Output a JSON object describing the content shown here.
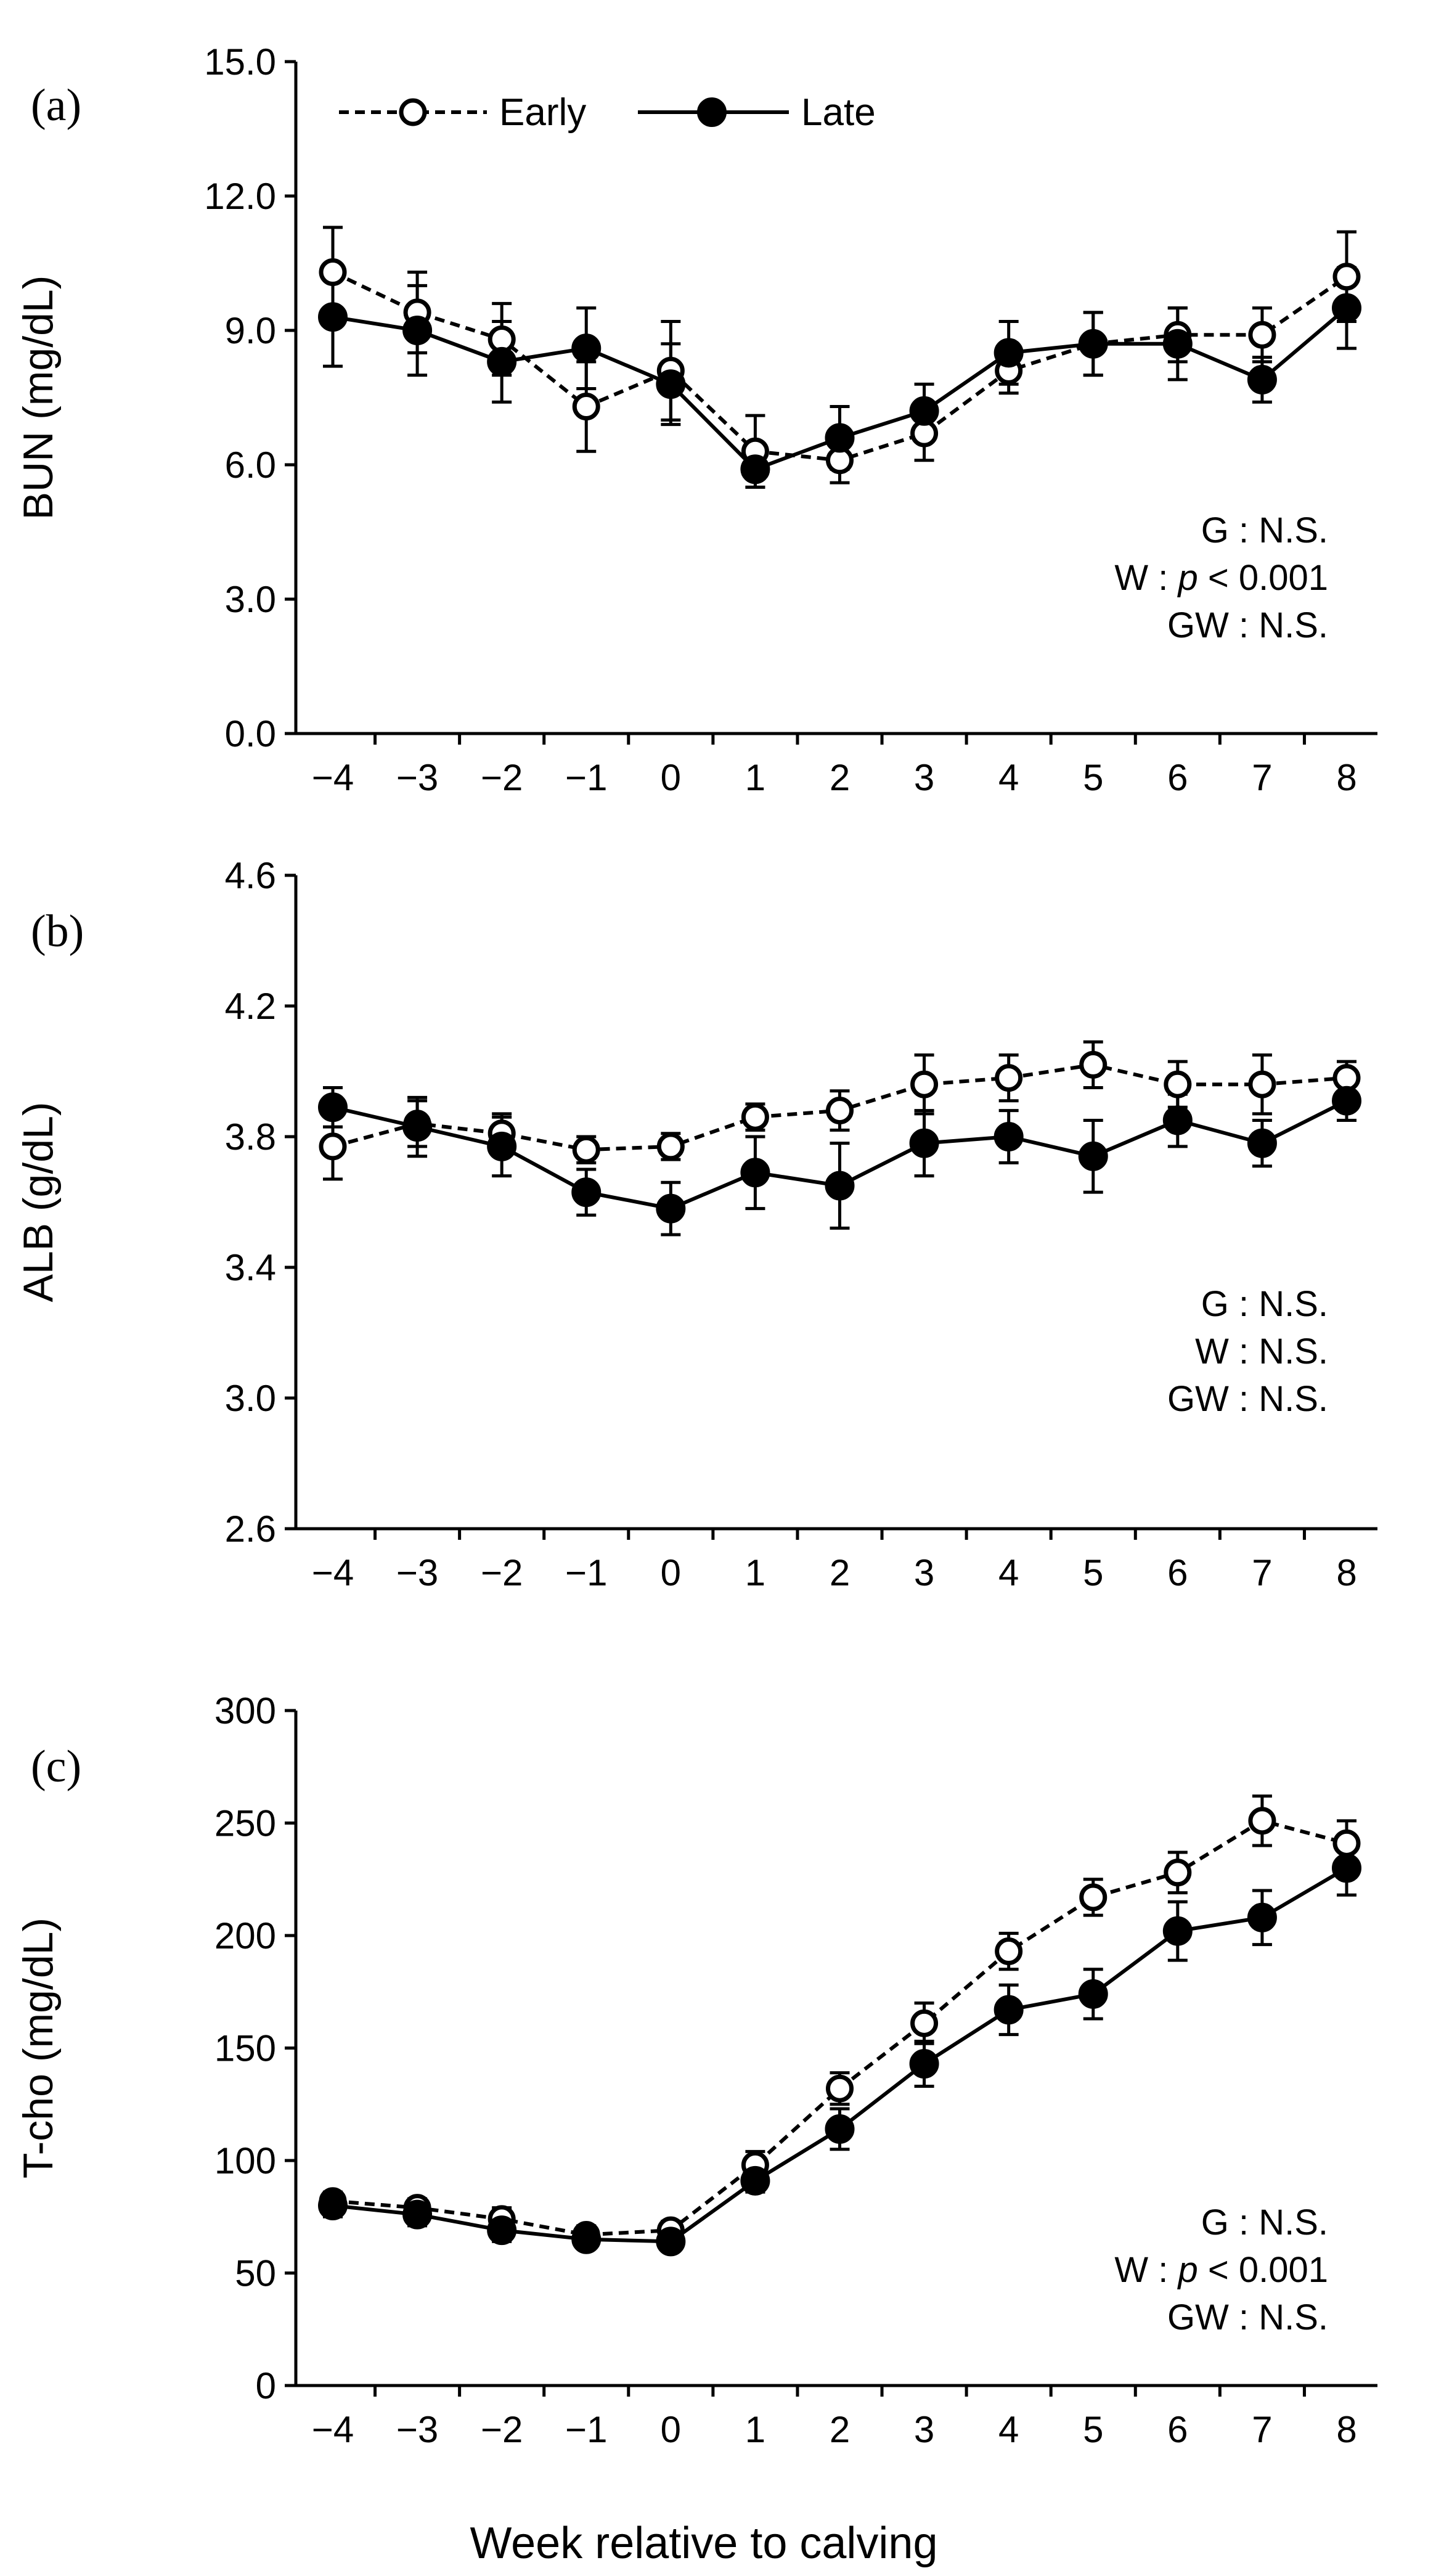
{
  "x_axis_label": "Week relative to calving",
  "legend": {
    "early": "Early",
    "late": "Late"
  },
  "chart_data": [
    {
      "panel_label": "(a)",
      "type": "line",
      "ylabel": "BUN (mg/dL)",
      "ylim": [
        0,
        15
      ],
      "yticks": [
        "0.0",
        "3.0",
        "6.0",
        "9.0",
        "12.0",
        "15.0"
      ],
      "categories": [
        "−4",
        "−3",
        "−2",
        "−1",
        "0",
        "1",
        "2",
        "3",
        "4",
        "5",
        "6",
        "7",
        "8"
      ],
      "x": [
        -4,
        -3,
        -2,
        -1,
        0,
        1,
        2,
        3,
        4,
        5,
        6,
        7,
        8
      ],
      "series": [
        {
          "name": "Early",
          "values": [
            10.3,
            9.4,
            8.8,
            7.3,
            8.1,
            6.3,
            6.1,
            6.7,
            8.1,
            8.7,
            8.9,
            8.9,
            10.2
          ],
          "errors": [
            1.0,
            0.9,
            0.8,
            1.0,
            1.1,
            0.8,
            0.5,
            0.6,
            0.5,
            0.7,
            0.6,
            0.6,
            1.0
          ]
        },
        {
          "name": "Late",
          "values": [
            9.3,
            9.0,
            8.3,
            8.6,
            7.8,
            5.9,
            6.6,
            7.2,
            8.5,
            8.7,
            8.7,
            7.9,
            9.5
          ],
          "errors": [
            1.1,
            1.0,
            0.9,
            0.9,
            0.9,
            0.4,
            0.7,
            0.6,
            0.7,
            0.7,
            0.8,
            0.5,
            0.9
          ]
        }
      ],
      "stats": [
        {
          "label": "G",
          "value": "N.S."
        },
        {
          "label": "W",
          "p": "p",
          "value": " < 0.001"
        },
        {
          "label": "GW",
          "value": "N.S."
        }
      ],
      "show_legend": true
    },
    {
      "panel_label": "(b)",
      "type": "line",
      "ylabel": "ALB (g/dL)",
      "ylim": [
        2.6,
        4.6
      ],
      "yticks": [
        "2.6",
        "3.0",
        "3.4",
        "3.8",
        "4.2",
        "4.6"
      ],
      "categories": [
        "−4",
        "−3",
        "−2",
        "−1",
        "0",
        "1",
        "2",
        "3",
        "4",
        "5",
        "6",
        "7",
        "8"
      ],
      "x": [
        -4,
        -3,
        -2,
        -1,
        0,
        1,
        2,
        3,
        4,
        5,
        6,
        7,
        8
      ],
      "series": [
        {
          "name": "Early",
          "values": [
            3.77,
            3.84,
            3.81,
            3.76,
            3.77,
            3.86,
            3.88,
            3.96,
            3.98,
            4.02,
            3.96,
            3.96,
            3.98
          ],
          "errors": [
            0.1,
            0.07,
            0.06,
            0.04,
            0.04,
            0.04,
            0.06,
            0.09,
            0.07,
            0.07,
            0.07,
            0.09,
            0.05
          ]
        },
        {
          "name": "Late",
          "values": [
            3.89,
            3.83,
            3.77,
            3.63,
            3.58,
            3.69,
            3.65,
            3.78,
            3.8,
            3.74,
            3.85,
            3.78,
            3.91
          ],
          "errors": [
            0.06,
            0.09,
            0.09,
            0.07,
            0.08,
            0.11,
            0.13,
            0.1,
            0.08,
            0.11,
            0.08,
            0.07,
            0.06
          ]
        }
      ],
      "stats": [
        {
          "label": "G",
          "value": "N.S."
        },
        {
          "label": "W",
          "value": "N.S."
        },
        {
          "label": "GW",
          "value": "N.S."
        }
      ],
      "show_legend": false
    },
    {
      "panel_label": "(c)",
      "type": "line",
      "ylabel": "T-cho (mg/dL)",
      "ylim": [
        0,
        300
      ],
      "yticks": [
        "0",
        "50",
        "100",
        "150",
        "200",
        "250",
        "300"
      ],
      "categories": [
        "−4",
        "−3",
        "−2",
        "−1",
        "0",
        "1",
        "2",
        "3",
        "4",
        "5",
        "6",
        "7",
        "8"
      ],
      "x": [
        -4,
        -3,
        -2,
        -1,
        0,
        1,
        2,
        3,
        4,
        5,
        6,
        7,
        8
      ],
      "series": [
        {
          "name": "Early",
          "values": [
            82,
            79,
            74,
            67,
            69,
            98,
            132,
            161,
            193,
            217,
            228,
            251,
            241
          ],
          "errors": [
            4,
            4,
            5,
            4,
            4,
            6,
            7,
            9,
            8,
            8,
            9,
            11,
            10
          ]
        },
        {
          "name": "Late",
          "values": [
            80,
            76,
            69,
            65,
            64,
            91,
            114,
            143,
            167,
            174,
            202,
            208,
            230
          ],
          "errors": [
            5,
            5,
            5,
            4,
            4,
            5,
            9,
            10,
            11,
            11,
            13,
            12,
            12
          ]
        }
      ],
      "stats": [
        {
          "label": "G",
          "value": "N.S."
        },
        {
          "label": "W",
          "p": "p",
          "value": " < 0.001"
        },
        {
          "label": "GW",
          "value": "N.S."
        }
      ],
      "show_legend": false
    }
  ]
}
